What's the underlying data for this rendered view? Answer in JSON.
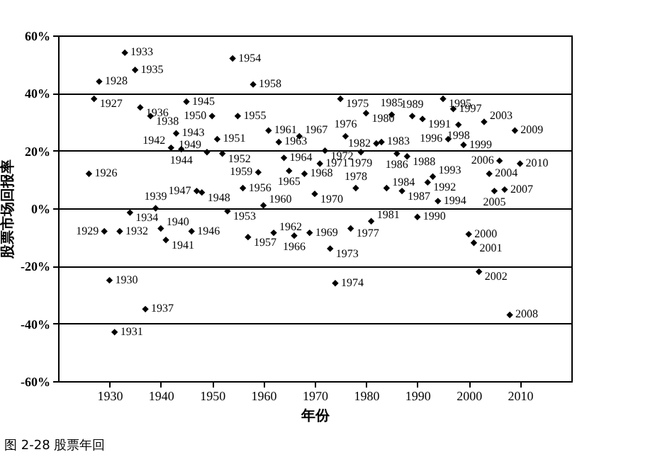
{
  "chart_data": {
    "type": "scatter",
    "title": "图 2-28  股票年回",
    "xlabel": "年份",
    "ylabel": "股票市场回报率",
    "x": [
      1926,
      1927,
      1928,
      1929,
      1930,
      1931,
      1932,
      1933,
      1934,
      1935,
      1936,
      1937,
      1938,
      1939,
      1940,
      1941,
      1942,
      1943,
      1944,
      1945,
      1946,
      1947,
      1948,
      1949,
      1950,
      1951,
      1952,
      1953,
      1954,
      1955,
      1956,
      1957,
      1958,
      1959,
      1960,
      1961,
      1962,
      1963,
      1964,
      1965,
      1966,
      1967,
      1968,
      1969,
      1970,
      1971,
      1972,
      1973,
      1974,
      1975,
      1976,
      1977,
      1978,
      1979,
      1980,
      1981,
      1982,
      1983,
      1984,
      1985,
      1986,
      1987,
      1988,
      1989,
      1990,
      1991,
      1992,
      1993,
      1994,
      1995,
      1996,
      1997,
      1998,
      1999,
      2000,
      2001,
      2002,
      2003,
      2004,
      2005,
      2006,
      2007,
      2008,
      2009,
      2010
    ],
    "series": [
      {
        "color": "#000000",
        "values": [
          12,
          38,
          44,
          -8,
          -25,
          -43,
          -8,
          54,
          -1.5,
          48,
          35,
          -35,
          32,
          0,
          -7,
          -11,
          21,
          26,
          20.5,
          37,
          -8,
          6,
          5.5,
          19.5,
          32,
          24,
          19,
          -1,
          52,
          32,
          7,
          -10,
          43,
          12.5,
          1,
          27,
          -8.5,
          23,
          17.5,
          13,
          -9.5,
          25,
          12,
          -8.5,
          5,
          15.5,
          20,
          -14,
          -26,
          38,
          25,
          -7,
          7,
          19.5,
          33,
          -4.5,
          22.5,
          23,
          7,
          32.5,
          19,
          6,
          18,
          32,
          -3,
          31,
          9,
          11,
          2.5,
          38,
          24,
          34.5,
          29,
          22,
          -9,
          -12,
          -22,
          30,
          12,
          6,
          16.5,
          6.5,
          -37,
          27,
          15.5
        ]
      }
    ],
    "annotations": [
      {
        "text": "1926",
        "x": 1926,
        "y": 12
      },
      {
        "text": "1927",
        "x": 1927,
        "y": 38
      },
      {
        "text": "1928",
        "x": 1928,
        "y": 44
      },
      {
        "text": "1929",
        "x": 1929,
        "y": -8
      },
      {
        "text": "1930",
        "x": 1930,
        "y": -25
      },
      {
        "text": "1931",
        "x": 1931,
        "y": -43
      },
      {
        "text": "1932",
        "x": 1932,
        "y": -8
      },
      {
        "text": "1933",
        "x": 1933,
        "y": 54
      },
      {
        "text": "1934",
        "x": 1934,
        "y": -1.5
      },
      {
        "text": "1935",
        "x": 1935,
        "y": 48
      },
      {
        "text": "1936",
        "x": 1936,
        "y": 35
      },
      {
        "text": "1937",
        "x": 1937,
        "y": -35
      },
      {
        "text": "1938",
        "x": 1938,
        "y": 32
      },
      {
        "text": "1939",
        "x": 1939,
        "y": 0
      },
      {
        "text": "1940",
        "x": 1940,
        "y": -7
      },
      {
        "text": "1941",
        "x": 1941,
        "y": -11
      },
      {
        "text": "1942",
        "x": 1942,
        "y": 21
      },
      {
        "text": "1943",
        "x": 1943,
        "y": 26
      },
      {
        "text": "1944",
        "x": 1944,
        "y": 20.5
      },
      {
        "text": "1945",
        "x": 1945,
        "y": 37
      },
      {
        "text": "1946",
        "x": 1946,
        "y": -8
      },
      {
        "text": "1947",
        "x": 1947,
        "y": 6
      },
      {
        "text": "1948",
        "x": 1948,
        "y": 5.5
      },
      {
        "text": "1949",
        "x": 1949,
        "y": 19.5
      },
      {
        "text": "1950",
        "x": 1950,
        "y": 32
      },
      {
        "text": "1951",
        "x": 1951,
        "y": 24
      },
      {
        "text": "1952",
        "x": 1952,
        "y": 19
      },
      {
        "text": "1953",
        "x": 1953,
        "y": -1
      },
      {
        "text": "1954",
        "x": 1954,
        "y": 52
      },
      {
        "text": "1955",
        "x": 1955,
        "y": 32
      },
      {
        "text": "1956",
        "x": 1956,
        "y": 7
      },
      {
        "text": "1957",
        "x": 1957,
        "y": -10
      },
      {
        "text": "1958",
        "x": 1958,
        "y": 43
      },
      {
        "text": "1959",
        "x": 1959,
        "y": 12.5
      },
      {
        "text": "1960",
        "x": 1960,
        "y": 1
      },
      {
        "text": "1961",
        "x": 1961,
        "y": 27
      },
      {
        "text": "1962",
        "x": 1962,
        "y": -8.5
      },
      {
        "text": "1963",
        "x": 1963,
        "y": 23
      },
      {
        "text": "1964",
        "x": 1964,
        "y": 17.5
      },
      {
        "text": "1965",
        "x": 1965,
        "y": 13
      },
      {
        "text": "1966",
        "x": 1966,
        "y": -9.5
      },
      {
        "text": "1967",
        "x": 1967,
        "y": 25
      },
      {
        "text": "1968",
        "x": 1968,
        "y": 12
      },
      {
        "text": "1969",
        "x": 1969,
        "y": -8.5
      },
      {
        "text": "1970",
        "x": 1970,
        "y": 5
      },
      {
        "text": "1971",
        "x": 1971,
        "y": 15.5
      },
      {
        "text": "1972",
        "x": 1972,
        "y": 20
      },
      {
        "text": "1973",
        "x": 1973,
        "y": -14
      },
      {
        "text": "1974",
        "x": 1974,
        "y": -26
      },
      {
        "text": "1975",
        "x": 1975,
        "y": 38
      },
      {
        "text": "1976",
        "x": 1976,
        "y": 25
      },
      {
        "text": "1977",
        "x": 1977,
        "y": -7
      },
      {
        "text": "1978",
        "x": 1978,
        "y": 7
      },
      {
        "text": "1979",
        "x": 1979,
        "y": 19.5
      },
      {
        "text": "1980",
        "x": 1980,
        "y": 33
      },
      {
        "text": "1981",
        "x": 1981,
        "y": -4.5
      },
      {
        "text": "1982",
        "x": 1982,
        "y": 22.5
      },
      {
        "text": "1983",
        "x": 1983,
        "y": 23
      },
      {
        "text": "1984",
        "x": 1984,
        "y": 7
      },
      {
        "text": "1985",
        "x": 1985,
        "y": 32.5
      },
      {
        "text": "1986",
        "x": 1986,
        "y": 19
      },
      {
        "text": "1987",
        "x": 1987,
        "y": 6
      },
      {
        "text": "1988",
        "x": 1988,
        "y": 18
      },
      {
        "text": "1989",
        "x": 1989,
        "y": 32
      },
      {
        "text": "1990",
        "x": 1990,
        "y": -3
      },
      {
        "text": "1991",
        "x": 1991,
        "y": 31
      },
      {
        "text": "1992",
        "x": 1992,
        "y": 9
      },
      {
        "text": "1993",
        "x": 1993,
        "y": 11
      },
      {
        "text": "1994",
        "x": 1994,
        "y": 2.5
      },
      {
        "text": "1995",
        "x": 1995,
        "y": 38
      },
      {
        "text": "1996",
        "x": 1996,
        "y": 24
      },
      {
        "text": "1997",
        "x": 1997,
        "y": 34.5
      },
      {
        "text": "1998",
        "x": 1998,
        "y": 29
      },
      {
        "text": "1999",
        "x": 1999,
        "y": 22
      },
      {
        "text": "2000",
        "x": 2000,
        "y": -9
      },
      {
        "text": "2001",
        "x": 2001,
        "y": -12
      },
      {
        "text": "2002",
        "x": 2002,
        "y": -22
      },
      {
        "text": "2003",
        "x": 2003,
        "y": 30
      },
      {
        "text": "2004",
        "x": 2004,
        "y": 12
      },
      {
        "text": "2005",
        "x": 2005,
        "y": 6
      },
      {
        "text": "2006",
        "x": 2006,
        "y": 16.5
      },
      {
        "text": "2007",
        "x": 2007,
        "y": 6.5
      },
      {
        "text": "2008",
        "x": 2008,
        "y": -37
      },
      {
        "text": "2009",
        "x": 2009,
        "y": 27
      },
      {
        "text": "2010",
        "x": 2010,
        "y": 15.5
      }
    ],
    "xlim": [
      1920,
      2020
    ],
    "xticks": [
      1930,
      1940,
      1950,
      1960,
      1970,
      1980,
      1990,
      2000,
      2010
    ],
    "ylim": [
      -60,
      60
    ],
    "yticks": [
      {
        "value": -60,
        "label": "-60%"
      },
      {
        "value": -40,
        "label": "-40%"
      },
      {
        "value": -20,
        "label": "-20%"
      },
      {
        "value": 0,
        "label": "0%"
      },
      {
        "value": 20,
        "label": "20%"
      },
      {
        "value": 40,
        "label": "40%"
      },
      {
        "value": 60,
        "label": "60%"
      }
    ],
    "grid": "y",
    "marker": "diamond"
  }
}
